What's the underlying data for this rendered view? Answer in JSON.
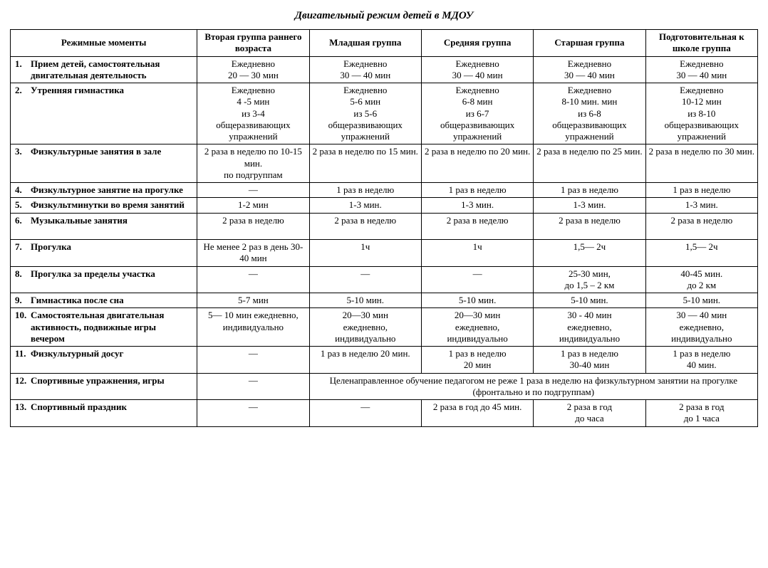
{
  "title": "Двигательный режим   детей в   МДОУ",
  "columns": [
    "Режимные моменты",
    "Вторая группа раннего возраста",
    "Младшая группа",
    "Средняя группа",
    "Старшая группа",
    "Подготовительная к школе группа"
  ],
  "rows": [
    {
      "num": "1.",
      "label": "Прием детей, самостоятельная двигательная деятельность",
      "cells": [
        [
          "Ежедневно",
          "20 — 30 мин"
        ],
        [
          "Ежедневно",
          "30 — 40 мин"
        ],
        [
          "Ежедневно",
          "30 — 40 мин"
        ],
        [
          "Ежедневно",
          "30 — 40 мин"
        ],
        [
          "Ежедневно",
          "30 — 40 мин"
        ]
      ]
    },
    {
      "num": "2.",
      "label": "Утренняя гимнастика",
      "cells": [
        [
          "Ежедневно",
          "4 -5 мин",
          "из 3-4",
          "общеразвивающих",
          "упражнений"
        ],
        [
          "Ежедневно",
          "5-6 мин",
          "из 5-6",
          "общеразвивающих",
          "упражнений"
        ],
        [
          "Ежедневно",
          "6-8 мин",
          "из 6-7",
          "общеразвивающих",
          "упражнений"
        ],
        [
          "Ежедневно",
          "8-10 мин. мин",
          "из 6-8",
          "общеразвивающих",
          "упражнений"
        ],
        [
          "Ежедневно",
          "10-12 мин",
          "из 8-10",
          "общеразвивающих упражнений"
        ]
      ]
    },
    {
      "num": "3.",
      "label": "Физкультурные занятия в зале",
      "cells": [
        [
          "2 раза в неделю по 10-15 мин.",
          "по подгруппам"
        ],
        [
          "2 раза в неделю по 15 мин."
        ],
        [
          "2 раза в неделю по 20 мин."
        ],
        [
          "2 раза в неделю по 25 мин."
        ],
        [
          "2 раза в неделю по 30 мин."
        ]
      ]
    },
    {
      "num": "4.",
      "label": "Физкультурное занятие на прогулке",
      "cells": [
        [
          "—"
        ],
        [
          "1 раз в неделю"
        ],
        [
          "1 раз в неделю"
        ],
        [
          "1 раз в неделю"
        ],
        [
          "1 раз в неделю"
        ]
      ]
    },
    {
      "num": "5.",
      "label": "Физкультминутки во время занятий",
      "cells": [
        [
          "1-2 мин"
        ],
        [
          "1-3 мин."
        ],
        [
          "1-3 мин."
        ],
        [
          "1-3 мин."
        ],
        [
          "1-3 мин."
        ]
      ]
    },
    {
      "num": "6.",
      "label": "Музыкальные занятия",
      "cells": [
        [
          "2 раза в неделю"
        ],
        [
          "2 раза в неделю"
        ],
        [
          "2 раза в неделю"
        ],
        [
          "2 раза в неделю"
        ],
        [
          "2 раза в неделю"
        ]
      ],
      "pad": true
    },
    {
      "num": "7.",
      "label": "Прогулка",
      "cells": [
        [
          "Не менее 2 раз в день 30-40 мин"
        ],
        [
          "1ч"
        ],
        [
          "1ч"
        ],
        [
          "1,5— 2ч"
        ],
        [
          "1,5— 2ч"
        ]
      ]
    },
    {
      "num": "8.",
      "label": "Прогулка за пределы участка",
      "cells": [
        [
          "—"
        ],
        [
          "—"
        ],
        [
          "—"
        ],
        [
          "25-30 мин,",
          "до 1,5 – 2 км"
        ],
        [
          "40-45 мин.",
          "до 2 км"
        ]
      ]
    },
    {
      "num": "9.",
      "label": "Гимнастика после сна",
      "cells": [
        [
          "5-7 мин"
        ],
        [
          "5-10 мин."
        ],
        [
          "5-10 мин."
        ],
        [
          "5-10 мин."
        ],
        [
          "5-10 мин."
        ]
      ]
    },
    {
      "num": "10.",
      "label": "Самостоятельная двигательная активность, подвижные игры вечером",
      "cells": [
        [
          "5— 10 мин ежедневно, индивидуально"
        ],
        [
          "20—30 мин",
          "ежедневно,",
          "индивидуально"
        ],
        [
          "20—30 мин",
          "ежедневно,",
          "индивидуально"
        ],
        [
          "30 - 40 мин",
          "ежедневно,",
          "индивидуально"
        ],
        [
          "30 — 40 мин",
          "ежедневно,",
          "индивидуально"
        ]
      ]
    },
    {
      "num": "11.",
      "label": "Физкультурный досуг",
      "cells": [
        [
          "—"
        ],
        [
          "1 раз в неделю 20 мин."
        ],
        [
          "1 раз в неделю",
          "20 мин"
        ],
        [
          "1 раз в неделю",
          "30-40 мин"
        ],
        [
          "1 раз в неделю",
          "40 мин."
        ]
      ]
    },
    {
      "num": "12.",
      "label": "Спортивные упражнения, игры",
      "span": {
        "first": [
          "—"
        ],
        "merged": "Целенаправленное обучение педагогом не реже 1 раза в неделю на физкультурном занятии на прогулке (фронтально и по подгруппам)"
      }
    },
    {
      "num": "13.",
      "label": "Спортивный праздник",
      "cells": [
        [
          "—"
        ],
        [
          "—"
        ],
        [
          "2 раза в год до 45 мин."
        ],
        [
          "2 раза в год",
          "до  часа"
        ],
        [
          "2 раза в год",
          "до 1 часа"
        ]
      ]
    }
  ],
  "style": {
    "font_family": "Times New Roman",
    "title_fontsize": 15,
    "body_fontsize": 13,
    "border_color": "#000000",
    "background_color": "#ffffff",
    "text_color": "#000000",
    "col_widths_pct": [
      25,
      15,
      15,
      15,
      15,
      15
    ]
  }
}
